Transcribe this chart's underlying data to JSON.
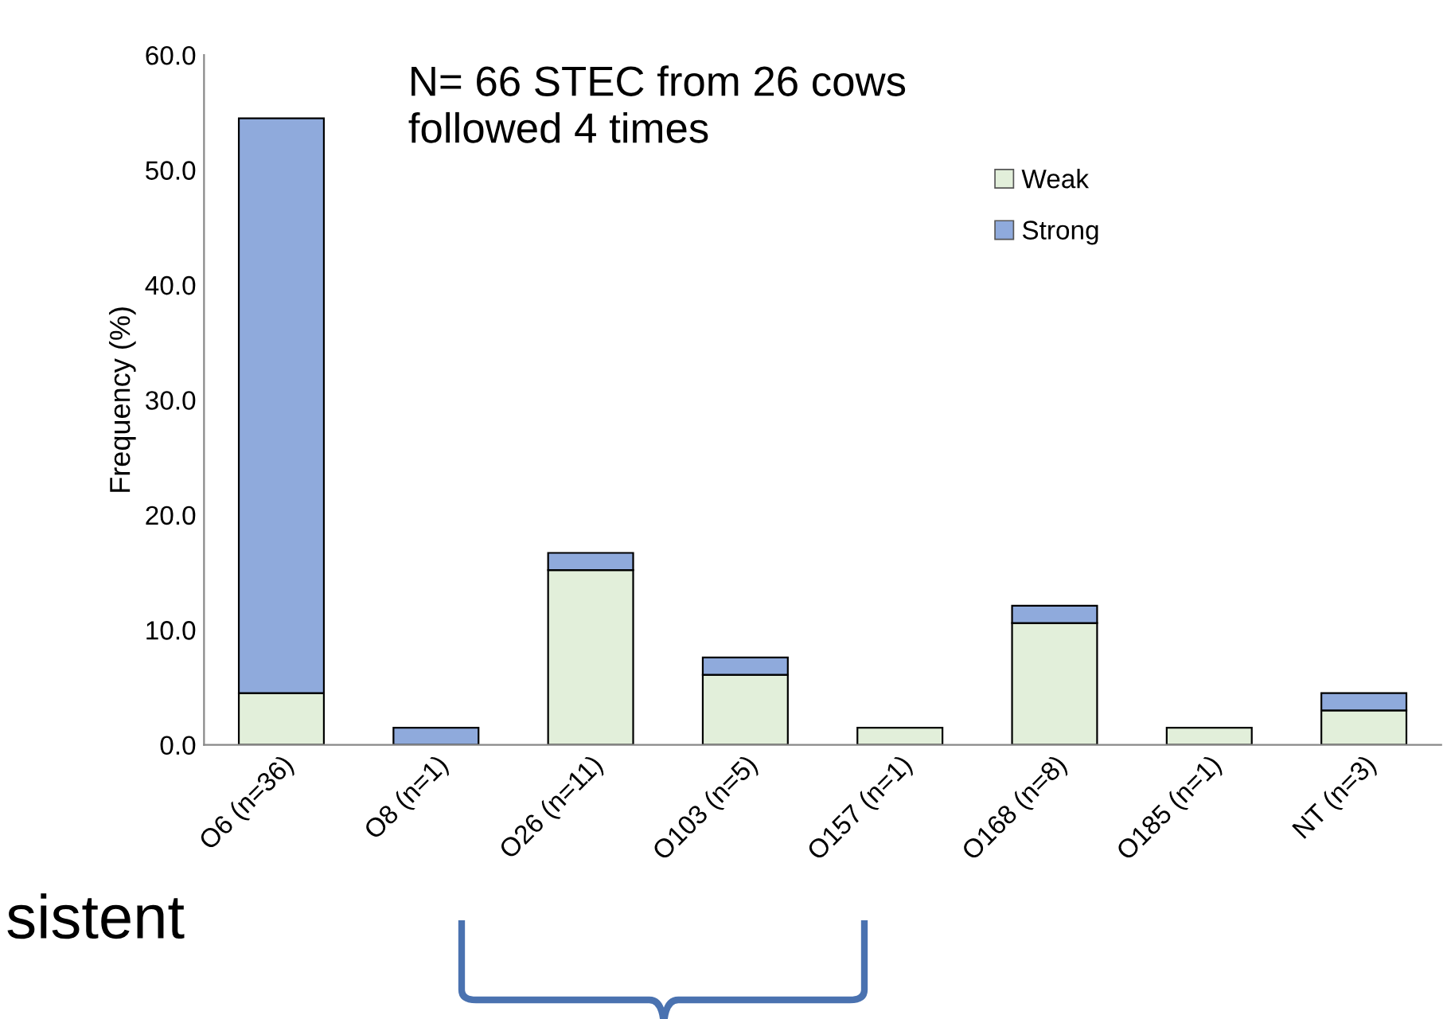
{
  "chart_data": {
    "type": "bar",
    "stacked": true,
    "title": "N= 66 STEC from 26 cows\nfollowed 4 times",
    "ylabel": "Frequency (%)",
    "categories": [
      "O6 (n=36)",
      "O8 (n=1)",
      "O26 (n=11)",
      "O103 (n=5)",
      "O157 (n=1)",
      "O168 (n=8)",
      "O185 (n=1)",
      "NT (n=3)"
    ],
    "series": [
      {
        "name": "Weak",
        "color": "#e2efda",
        "values": [
          4.5,
          null,
          15.2,
          6.1,
          1.5,
          10.6,
          1.5,
          3.0
        ]
      },
      {
        "name": "Strong",
        "color": "#8faadc",
        "values": [
          50.0,
          1.5,
          1.5,
          1.5,
          null,
          1.5,
          null,
          1.5
        ]
      }
    ],
    "ylim": [
      0,
      60
    ],
    "yticks": [
      {
        "value": 0,
        "label": "0.0"
      },
      {
        "value": 10,
        "label": "10.0"
      },
      {
        "value": 20,
        "label": "20.0"
      },
      {
        "value": 30,
        "label": "30.0"
      },
      {
        "value": 40,
        "label": "40.0"
      },
      {
        "value": 50,
        "label": "50.0"
      },
      {
        "value": 60,
        "label": "60.0"
      }
    ],
    "legend": "top right",
    "grid": false,
    "annotations": [
      "sistent"
    ]
  }
}
